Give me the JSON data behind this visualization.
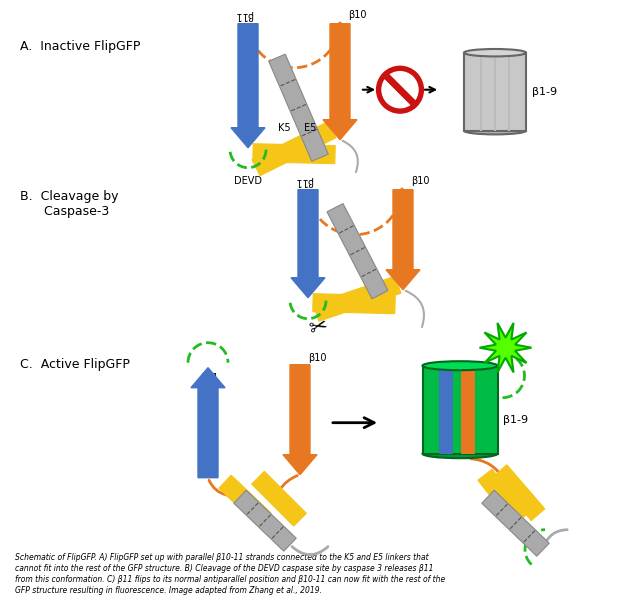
{
  "caption": "Schematic of FlipGFP. A) FlipGFP set up with parallel β10-11 strands connected to the K5 and E5 linkers that\ncannot fit into the rest of the GFP structure. B) Cleavage of the DEVD caspase site by caspase 3 releases β11\nfrom this conformation. C) β11 flips to its normal antiparallel position and β10-11 can now fit with the rest of the\nGFP structure resulting in fluorescence. Image adapted from Zhang et al., 2019.",
  "label_A": "A.  Inactive FlipGFP",
  "label_B": "B.  Cleavage by\n      Caspase-3",
  "label_C": "C.  Active FlipGFP",
  "blue_color": "#4472C4",
  "orange_color": "#E87722",
  "yellow_color": "#F5C518",
  "gray_color": "#999999",
  "green_color": "#00BB44",
  "red_color": "#CC1111",
  "dashed_green": "#22BB22",
  "background": "#FFFFFF"
}
